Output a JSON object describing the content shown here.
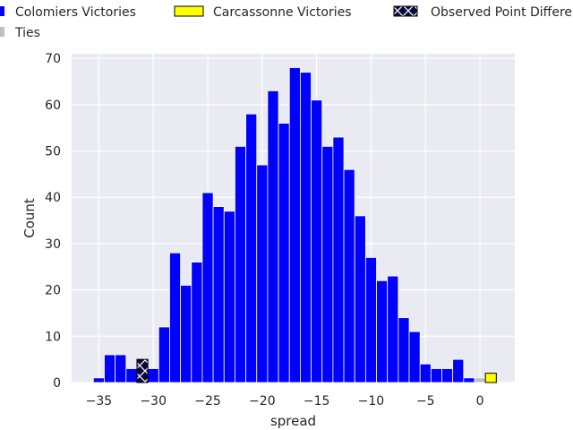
{
  "chart_data": {
    "type": "bar",
    "subtype": "histogram",
    "xlabel": "spread",
    "ylabel": "Count",
    "xlim": [
      -37.5,
      3.2
    ],
    "ylim": [
      0,
      71
    ],
    "xticks": [
      -35,
      -30,
      -25,
      -20,
      -15,
      -10,
      -5,
      0
    ],
    "xtick_labels": [
      "−35",
      "−30",
      "−25",
      "−20",
      "−15",
      "−10",
      "−5",
      "0"
    ],
    "yticks": [
      0,
      10,
      20,
      30,
      40,
      50,
      60,
      70
    ],
    "ytick_labels": [
      "0",
      "10",
      "20",
      "30",
      "40",
      "50",
      "60",
      "70"
    ],
    "bin_width": 1,
    "grid": true,
    "legend_position": "top",
    "background_color": "#eaeaf2",
    "series": [
      {
        "name": "Colomiers Victories",
        "color": "#0000ff",
        "bins": [
          {
            "x": -35,
            "count": 1
          },
          {
            "x": -34,
            "count": 6
          },
          {
            "x": -33,
            "count": 6
          },
          {
            "x": -32,
            "count": 3
          },
          {
            "x": -30,
            "count": 3
          },
          {
            "x": -29,
            "count": 12
          },
          {
            "x": -28,
            "count": 28
          },
          {
            "x": -27,
            "count": 21
          },
          {
            "x": -26,
            "count": 26
          },
          {
            "x": -25,
            "count": 41
          },
          {
            "x": -24,
            "count": 38
          },
          {
            "x": -23,
            "count": 37
          },
          {
            "x": -22,
            "count": 51
          },
          {
            "x": -21,
            "count": 58
          },
          {
            "x": -20,
            "count": 47
          },
          {
            "x": -19,
            "count": 63
          },
          {
            "x": -18,
            "count": 56
          },
          {
            "x": -17,
            "count": 68
          },
          {
            "x": -16,
            "count": 67
          },
          {
            "x": -15,
            "count": 61
          },
          {
            "x": -14,
            "count": 51
          },
          {
            "x": -13,
            "count": 53
          },
          {
            "x": -12,
            "count": 46
          },
          {
            "x": -11,
            "count": 36
          },
          {
            "x": -10,
            "count": 27
          },
          {
            "x": -9,
            "count": 22
          },
          {
            "x": -8,
            "count": 23
          },
          {
            "x": -7,
            "count": 14
          },
          {
            "x": -6,
            "count": 11
          },
          {
            "x": -5,
            "count": 4
          },
          {
            "x": -4,
            "count": 3
          },
          {
            "x": -3,
            "count": 3
          },
          {
            "x": -2,
            "count": 5
          },
          {
            "x": -1,
            "count": 1
          }
        ]
      },
      {
        "name": "Ties",
        "color": "#c0c0c0",
        "bins": [
          {
            "x": 0,
            "count": 1
          }
        ]
      },
      {
        "name": "Carcassonne Victories",
        "color": "#ffff00",
        "bins": [
          {
            "x": 1,
            "count": 2
          }
        ]
      },
      {
        "name": "Observed Point Differential",
        "color": "#0a0a3a",
        "hatch": "x",
        "bins": [
          {
            "x": -31,
            "count": 5
          }
        ]
      }
    ],
    "legend": [
      {
        "label": "Colomiers Victories",
        "color": "#0000ff",
        "hatch": false
      },
      {
        "label": "Carcassonne Victories",
        "color": "#ffff00",
        "hatch": false
      },
      {
        "label": "Observed Point Differential",
        "color": "#0a0a3a",
        "hatch": true
      },
      {
        "label": "Ties",
        "color": "#c0c0c0",
        "hatch": false
      }
    ]
  }
}
